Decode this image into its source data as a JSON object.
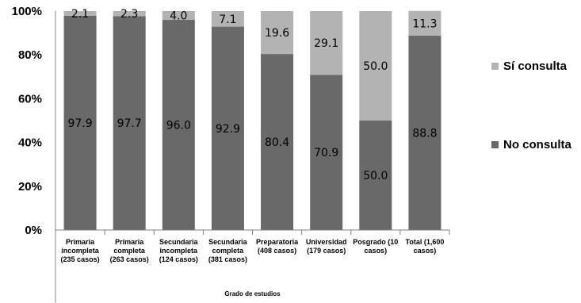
{
  "chart_data": {
    "type": "bar",
    "stacked": true,
    "percent": true,
    "xlabel": "Grado de estudios",
    "ylabel": "",
    "ylim": [
      0,
      100
    ],
    "yticks": [
      "0%",
      "20%",
      "40%",
      "60%",
      "80%",
      "100%"
    ],
    "categories": [
      [
        "Primaria",
        "incompleta",
        "(235 casos)"
      ],
      [
        "Primaria",
        "completa",
        "(263 casos)"
      ],
      [
        "Secundaria",
        "incompleta",
        "(124 casos)"
      ],
      [
        "Secundaria",
        "completa",
        "(381 casos)"
      ],
      [
        "Preparatoria",
        "(408 casos)"
      ],
      [
        "Universidad",
        "(179 casos)"
      ],
      [
        "Posgrado (10",
        "casos)"
      ],
      [
        "Total (1,600",
        "casos)"
      ]
    ],
    "series": [
      {
        "name": "No consulta",
        "color": "#696969",
        "values": [
          97.9,
          97.7,
          96.0,
          92.9,
          80.4,
          70.9,
          50.0,
          88.8
        ],
        "labels": [
          "97.9",
          "97.7",
          "96.0",
          "92.9",
          "80.4",
          "70.9",
          "50.0",
          "88.8"
        ]
      },
      {
        "name": "Sí consulta",
        "color": "#b3b3b3",
        "values": [
          2.1,
          2.3,
          4.0,
          7.1,
          19.6,
          29.1,
          50.0,
          11.3
        ],
        "labels": [
          "2.1",
          "2.3",
          "4.0",
          "7.1",
          "19.6",
          "29.1",
          "50.0",
          "11.3"
        ]
      }
    ],
    "legend": {
      "position": "right",
      "order": [
        "Sí consulta",
        "No consulta"
      ]
    }
  }
}
